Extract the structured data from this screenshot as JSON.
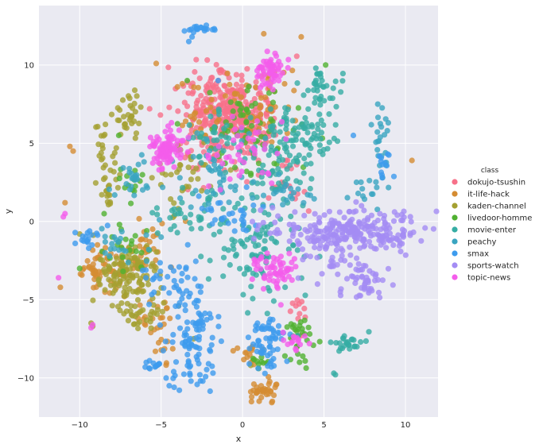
{
  "chart_data": {
    "type": "scatter",
    "xlabel": "x",
    "ylabel": "y",
    "xlim": [
      -12.5,
      12
    ],
    "ylim": [
      -12.5,
      13.8
    ],
    "xticks": [
      -10,
      -5,
      0,
      5,
      10
    ],
    "yticks": [
      -10,
      -5,
      0,
      5,
      10
    ],
    "grid": true,
    "background": "#eaeaf2",
    "legend": {
      "title": "class",
      "placement": "right"
    },
    "series": [
      {
        "name": "dokujo-tsushin",
        "color": "#f77189",
        "clusters": [
          {
            "x": -1.2,
            "y": 7.3,
            "sx": 1.3,
            "sy": 1.1,
            "n": 220
          },
          {
            "x": 0.5,
            "y": 6.5,
            "sx": 1.2,
            "sy": 1.2,
            "n": 110
          },
          {
            "x": -2.0,
            "y": 4.5,
            "sx": 1.0,
            "sy": 1.0,
            "n": 40
          },
          {
            "x": 2.5,
            "y": 2.5,
            "sx": 0.8,
            "sy": 0.8,
            "n": 20
          },
          {
            "x": 3.5,
            "y": -5.5,
            "sx": 0.4,
            "sy": 0.4,
            "n": 10
          }
        ],
        "points": [
          [
            2.4,
            2.5
          ],
          [
            3.6,
            -7.3
          ],
          [
            1.6,
            1.5
          ],
          [
            3.8,
            1.9
          ]
        ]
      },
      {
        "name": "it-life-hack",
        "color": "#d58c32",
        "clusters": [
          {
            "x": -8.5,
            "y": -3.2,
            "sx": 0.8,
            "sy": 0.8,
            "n": 60
          },
          {
            "x": 1.2,
            "y": -10.8,
            "sx": 0.4,
            "sy": 0.3,
            "n": 35
          },
          {
            "x": -5.3,
            "y": -6.8,
            "sx": 0.6,
            "sy": 1.2,
            "n": 30
          },
          {
            "x": 0.5,
            "y": -8.5,
            "sx": 0.5,
            "sy": 0.4,
            "n": 15
          },
          {
            "x": -6.0,
            "y": -1.5,
            "sx": 0.8,
            "sy": 0.8,
            "n": 30
          },
          {
            "x": 1.0,
            "y": 7.0,
            "sx": 1.2,
            "sy": 1.4,
            "n": 50
          },
          {
            "x": -2.5,
            "y": 6.5,
            "sx": 0.8,
            "sy": 0.8,
            "n": 20
          }
        ],
        "points": [
          [
            -10.6,
            4.8
          ],
          [
            -10.4,
            4.5
          ],
          [
            -5.3,
            10.1
          ],
          [
            1.3,
            12.0
          ],
          [
            3.6,
            11.8
          ],
          [
            10.4,
            3.9
          ],
          [
            -10.9,
            1.2
          ],
          [
            -4.0,
            8.6
          ],
          [
            -3.7,
            8.8
          ],
          [
            2.0,
            -10.6
          ]
        ]
      },
      {
        "name": "kaden-channel",
        "color": "#a4a031",
        "clusters": [
          {
            "x": -7.2,
            "y": -3.3,
            "sx": 1.0,
            "sy": 0.9,
            "n": 120
          },
          {
            "x": -6.3,
            "y": -5.8,
            "sx": 0.8,
            "sy": 0.5,
            "n": 35
          },
          {
            "x": -8.3,
            "y": 3.5,
            "sx": 0.4,
            "sy": 1.8,
            "n": 40
          },
          {
            "x": -7.0,
            "y": 6.5,
            "sx": 0.5,
            "sy": 0.6,
            "n": 20
          },
          {
            "x": -3.5,
            "y": 3.0,
            "sx": 1.0,
            "sy": 1.0,
            "n": 35
          },
          {
            "x": -6.7,
            "y": 7.5,
            "sx": 0.3,
            "sy": 0.4,
            "n": 10
          }
        ],
        "points": [
          [
            -9.3,
            -6.5
          ],
          [
            -9.2,
            -6.7
          ],
          [
            -10.0,
            -0.8
          ],
          [
            0.5,
            -9.2
          ],
          [
            -3.0,
            -7.5
          ]
        ]
      },
      {
        "name": "livedoor-homme",
        "color": "#50b131",
        "clusters": [
          {
            "x": 0.5,
            "y": 5.8,
            "sx": 1.5,
            "sy": 1.3,
            "n": 70
          },
          {
            "x": 3.5,
            "y": -7.5,
            "sx": 0.5,
            "sy": 0.6,
            "n": 30
          },
          {
            "x": -7.0,
            "y": -1.5,
            "sx": 0.8,
            "sy": 0.7,
            "n": 20
          },
          {
            "x": -6.8,
            "y": 2.6,
            "sx": 0.5,
            "sy": 0.5,
            "n": 12
          },
          {
            "x": 1.0,
            "y": -9.0,
            "sx": 0.4,
            "sy": 0.4,
            "n": 10
          }
        ],
        "points": [
          [
            -7.6,
            5.5
          ],
          [
            -7.0,
            2.3
          ],
          [
            -8.5,
            0.5
          ],
          [
            -10.0,
            -3.0
          ],
          [
            2.6,
            -8.6
          ],
          [
            3.5,
            -9.0
          ],
          [
            -3.4,
            9.0
          ],
          [
            5.1,
            10.0
          ]
        ]
      },
      {
        "name": "movie-enter",
        "color": "#36ada4",
        "clusters": [
          {
            "x": 1.0,
            "y": -1.5,
            "sx": 1.3,
            "sy": 1.8,
            "n": 100
          },
          {
            "x": 3.5,
            "y": 5.5,
            "sx": 1.2,
            "sy": 1.0,
            "n": 90
          },
          {
            "x": 5.0,
            "y": 8.5,
            "sx": 0.7,
            "sy": 0.7,
            "n": 35
          },
          {
            "x": 6.5,
            "y": -7.8,
            "sx": 0.6,
            "sy": 0.3,
            "n": 25
          },
          {
            "x": -3.0,
            "y": 0.5,
            "sx": 1.0,
            "sy": 0.7,
            "n": 40
          },
          {
            "x": 2.0,
            "y": 3.5,
            "sx": 1.0,
            "sy": 1.0,
            "n": 40
          },
          {
            "x": -1.8,
            "y": 5.5,
            "sx": 0.8,
            "sy": 0.8,
            "n": 30
          }
        ],
        "points": [
          [
            5.6,
            -9.7
          ],
          [
            5.7,
            -9.8
          ],
          [
            -2.0,
            -2.5
          ],
          [
            4.5,
            9.8
          ]
        ]
      },
      {
        "name": "peachy",
        "color": "#3aa5c1",
        "clusters": [
          {
            "x": -6.5,
            "y": 2.5,
            "sx": 0.6,
            "sy": 0.8,
            "n": 25
          },
          {
            "x": 8.5,
            "y": 5.0,
            "sx": 0.3,
            "sy": 1.2,
            "n": 20
          },
          {
            "x": 7.5,
            "y": 2.0,
            "sx": 0.7,
            "sy": 0.5,
            "n": 15
          },
          {
            "x": -1.5,
            "y": 3.0,
            "sx": 1.2,
            "sy": 1.2,
            "n": 40
          },
          {
            "x": -7.5,
            "y": -1.5,
            "sx": 0.8,
            "sy": 0.6,
            "n": 20
          },
          {
            "x": 3.0,
            "y": 1.8,
            "sx": 0.8,
            "sy": 0.6,
            "n": 20
          }
        ],
        "points": [
          [
            -3.3,
            5.3
          ],
          [
            -5.0,
            -1.0
          ],
          [
            8.8,
            3.6
          ],
          [
            8.3,
            7.5
          ]
        ]
      },
      {
        "name": "smax",
        "color": "#3d9bee",
        "clusters": [
          {
            "x": 1.5,
            "y": -7.8,
            "sx": 0.6,
            "sy": 0.9,
            "n": 60
          },
          {
            "x": -3.2,
            "y": -8.5,
            "sx": 0.7,
            "sy": 1.2,
            "n": 60
          },
          {
            "x": -2.5,
            "y": 12.3,
            "sx": 0.4,
            "sy": 0.1,
            "n": 20
          },
          {
            "x": -4.0,
            "y": -4.0,
            "sx": 0.9,
            "sy": 1.3,
            "n": 50
          },
          {
            "x": -5.5,
            "y": -9.2,
            "sx": 0.3,
            "sy": 0.2,
            "n": 12
          },
          {
            "x": -9.5,
            "y": -1.0,
            "sx": 0.5,
            "sy": 0.4,
            "n": 18
          },
          {
            "x": -2.5,
            "y": -6.5,
            "sx": 0.6,
            "sy": 0.6,
            "n": 25
          },
          {
            "x": 8.6,
            "y": 3.8,
            "sx": 0.2,
            "sy": 0.6,
            "n": 12
          },
          {
            "x": -0.5,
            "y": 0.5,
            "sx": 1.0,
            "sy": 0.8,
            "n": 30
          }
        ],
        "points": [
          [
            -3.1,
            11.8
          ],
          [
            -3.3,
            11.5
          ],
          [
            -4.5,
            -10.5
          ],
          [
            -4.2,
            -10.6
          ],
          [
            -1.5,
            9.0
          ],
          [
            6.8,
            5.5
          ]
        ]
      },
      {
        "name": "sports-watch",
        "color": "#a48cf4",
        "clusters": [
          {
            "x": 6.5,
            "y": -0.5,
            "sx": 2.4,
            "sy": 0.6,
            "n": 220
          },
          {
            "x": 7.5,
            "y": -3.8,
            "sx": 0.6,
            "sy": 0.6,
            "n": 50
          },
          {
            "x": 5.5,
            "y": -2.0,
            "sx": 0.7,
            "sy": 1.0,
            "n": 40
          },
          {
            "x": 9.3,
            "y": -1.3,
            "sx": 0.5,
            "sy": 0.4,
            "n": 25
          }
        ],
        "points": [
          [
            4.6,
            -4.0
          ],
          [
            6.0,
            -4.5
          ],
          [
            9.5,
            0.4
          ],
          [
            10.3,
            0.3
          ],
          [
            7.3,
            1.0
          ]
        ]
      },
      {
        "name": "topic-news",
        "color": "#f45deb",
        "clusters": [
          {
            "x": -4.6,
            "y": 4.7,
            "sx": 0.5,
            "sy": 0.6,
            "n": 90
          },
          {
            "x": 1.7,
            "y": 9.6,
            "sx": 0.4,
            "sy": 0.5,
            "n": 60
          },
          {
            "x": 2.0,
            "y": -3.3,
            "sx": 0.6,
            "sy": 0.7,
            "n": 60
          },
          {
            "x": 3.5,
            "y": -7.5,
            "sx": 0.4,
            "sy": 0.4,
            "n": 15
          },
          {
            "x": 0.0,
            "y": 4.5,
            "sx": 1.2,
            "sy": 1.2,
            "n": 40
          }
        ],
        "points": [
          [
            -9.2,
            -6.6
          ],
          [
            -9.3,
            -6.8
          ],
          [
            -11.0,
            0.3
          ],
          [
            -11.3,
            -3.6
          ],
          [
            -10.9,
            0.5
          ]
        ]
      }
    ]
  }
}
